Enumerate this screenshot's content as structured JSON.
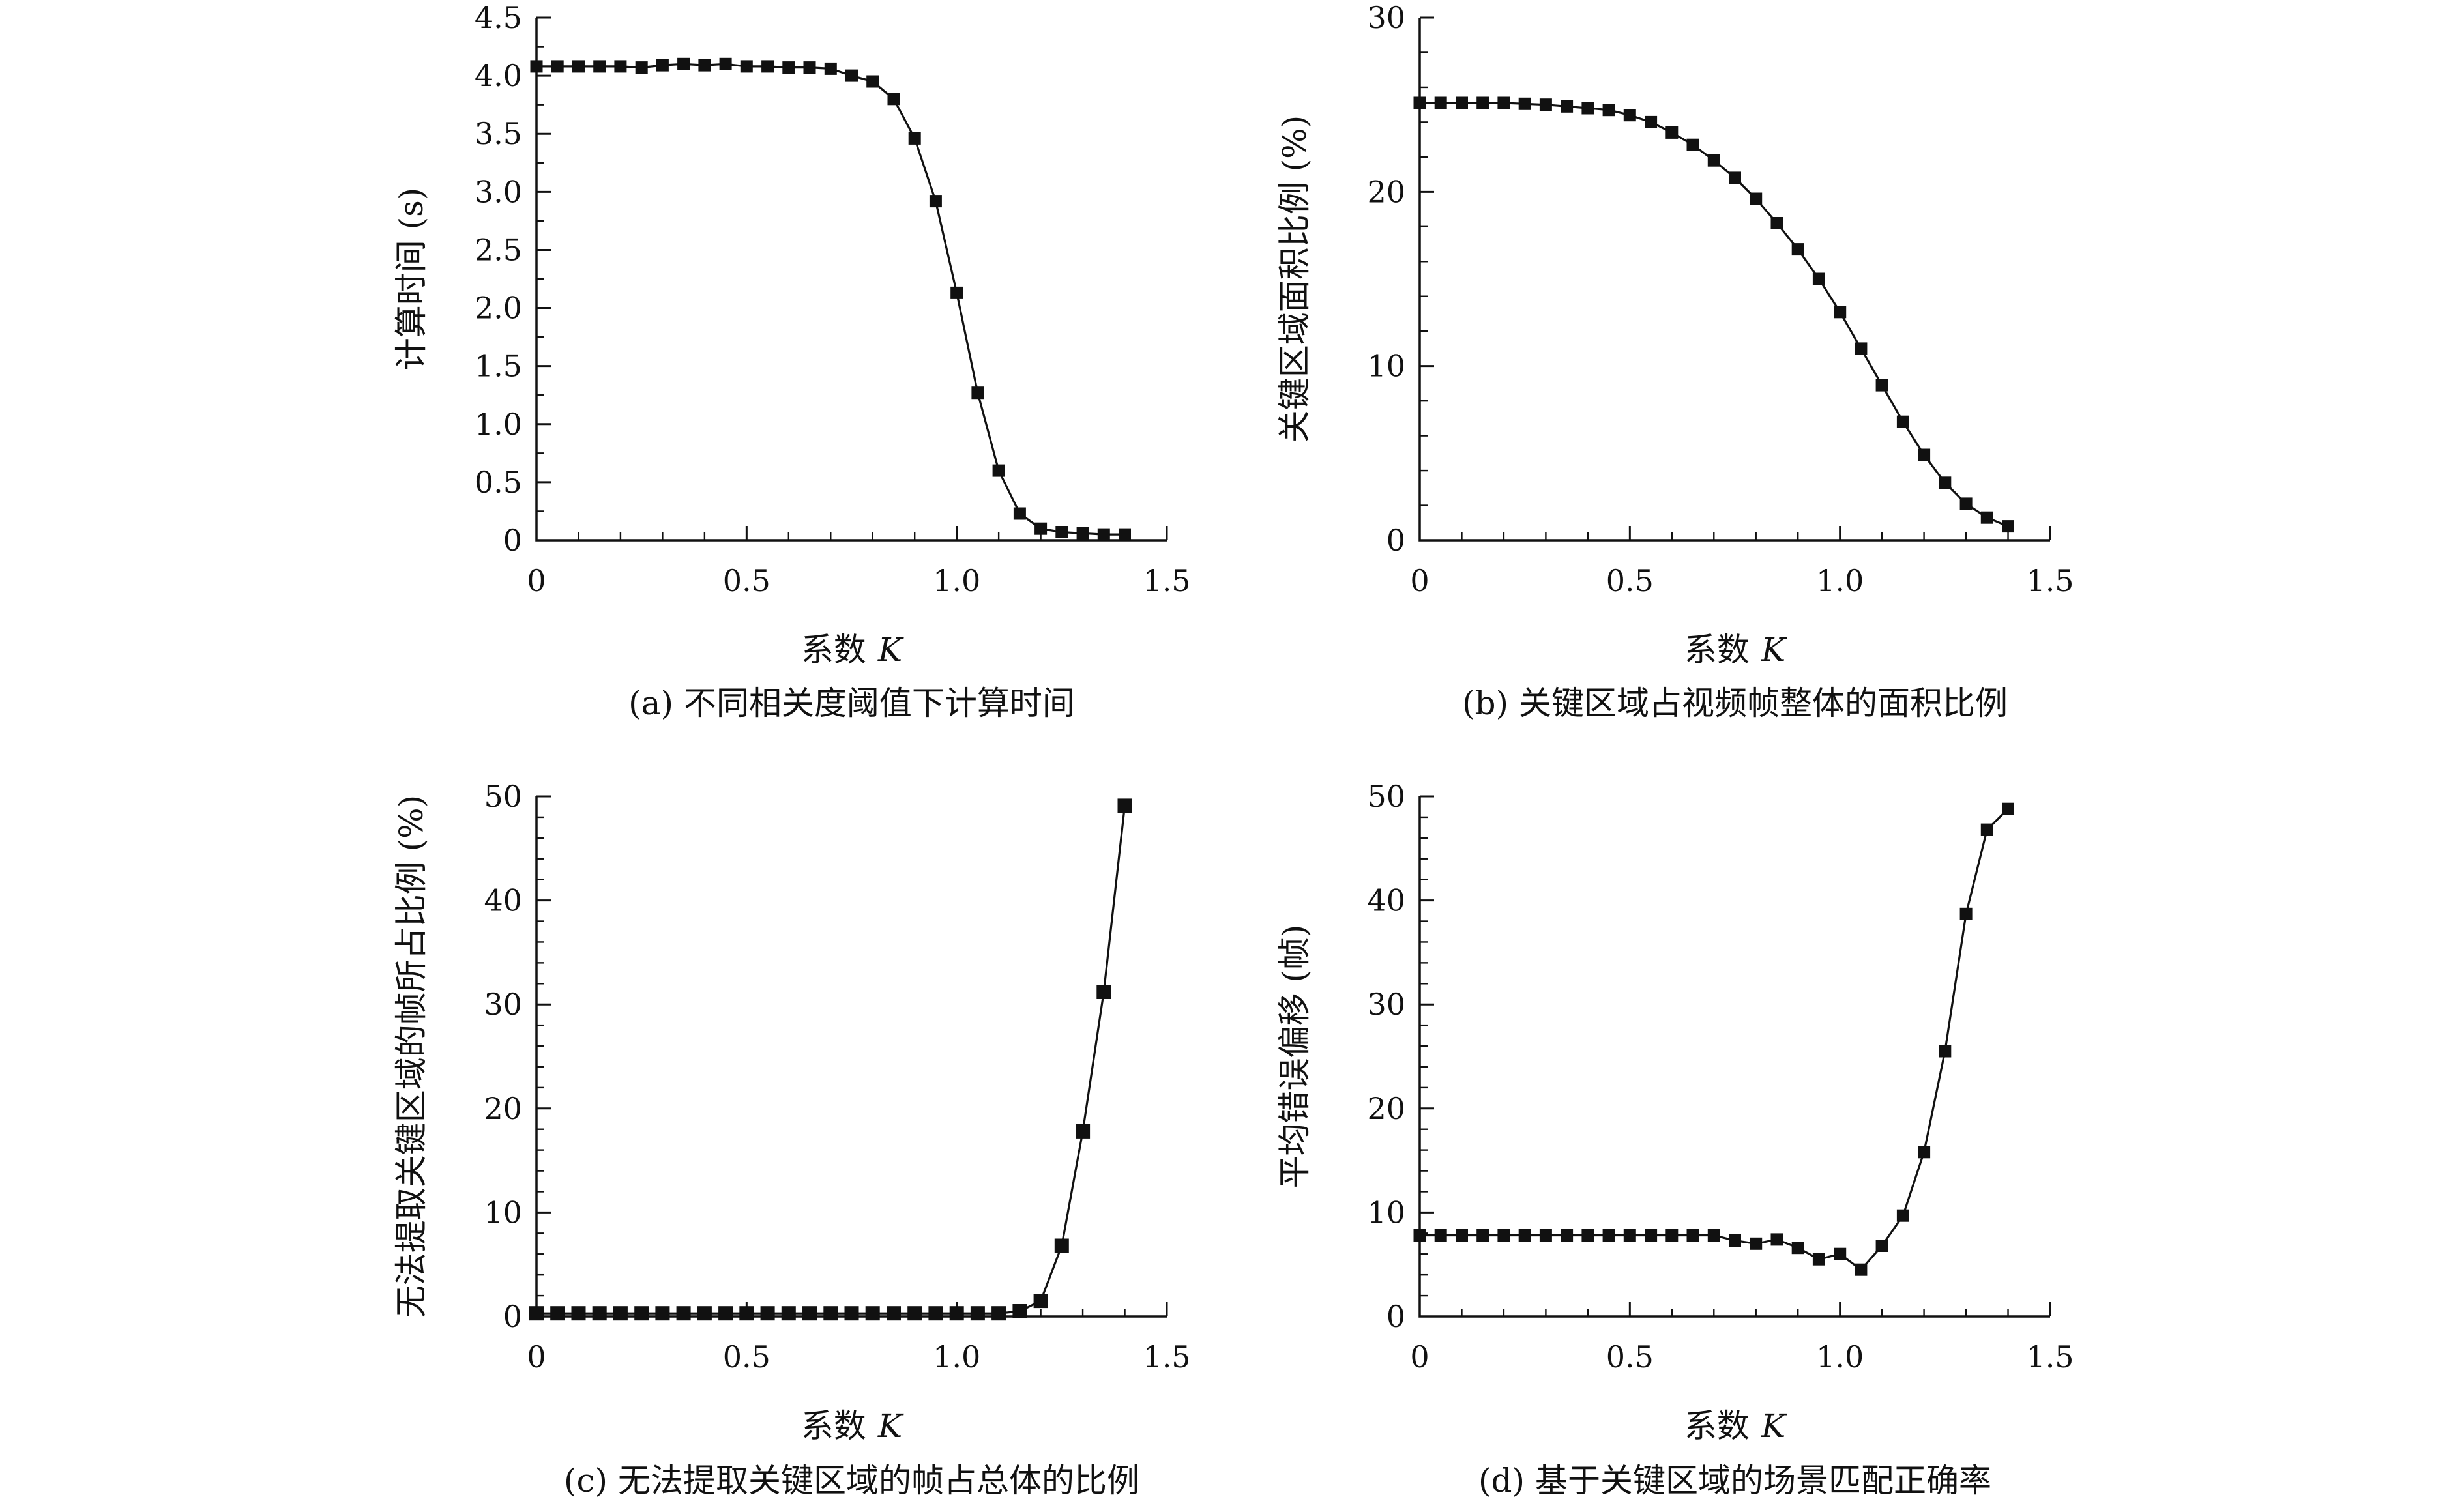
{
  "chart_data": [
    {
      "type": "line",
      "title": "",
      "caption": "(a) 不同相关度阈值下计算时间",
      "xlabel": "系数",
      "xlabel_var": "K",
      "ylabel": "计算时间 (s)",
      "xlim": [
        0,
        1.5
      ],
      "ylim": [
        0,
        4.5
      ],
      "xticks": [
        "0",
        "0.5",
        "1.0",
        "1.5"
      ],
      "yticks": [
        "0",
        "0.5",
        "1.0",
        "1.5",
        "2.0",
        "2.5",
        "3.0",
        "3.5",
        "4.0",
        "4.5"
      ],
      "grid": false,
      "x": [
        0,
        0.05,
        0.1,
        0.15,
        0.2,
        0.25,
        0.3,
        0.35,
        0.4,
        0.45,
        0.5,
        0.55,
        0.6,
        0.65,
        0.7,
        0.75,
        0.8,
        0.85,
        0.9,
        0.95,
        1.0,
        1.05,
        1.1,
        1.15,
        1.2,
        1.25,
        1.3,
        1.35,
        1.4
      ],
      "series": [
        {
          "values": [
            4.08,
            4.08,
            4.08,
            4.08,
            4.08,
            4.07,
            4.09,
            4.1,
            4.09,
            4.1,
            4.08,
            4.08,
            4.07,
            4.07,
            4.06,
            4.0,
            3.95,
            3.8,
            3.46,
            2.92,
            2.13,
            1.27,
            0.6,
            0.23,
            0.1,
            0.07,
            0.06,
            0.05,
            0.05
          ]
        }
      ]
    },
    {
      "type": "line",
      "title": "",
      "caption": "(b) 关键区域占视频帧整体的面积比例",
      "xlabel": "系数",
      "xlabel_var": "K",
      "ylabel": "关键区域面积比例 (%)",
      "xlim": [
        0,
        1.5
      ],
      "ylim": [
        0,
        30
      ],
      "xticks": [
        "0",
        "0.5",
        "1.0",
        "1.5"
      ],
      "yticks": [
        "0",
        "10",
        "20",
        "30"
      ],
      "grid": false,
      "x": [
        0,
        0.05,
        0.1,
        0.15,
        0.2,
        0.25,
        0.3,
        0.35,
        0.4,
        0.45,
        0.5,
        0.55,
        0.6,
        0.65,
        0.7,
        0.75,
        0.8,
        0.85,
        0.9,
        0.95,
        1.0,
        1.05,
        1.1,
        1.15,
        1.2,
        1.25,
        1.3,
        1.35,
        1.4
      ],
      "series": [
        {
          "values": [
            25.1,
            25.1,
            25.1,
            25.1,
            25.1,
            25.05,
            25.0,
            24.9,
            24.8,
            24.7,
            24.4,
            24.0,
            23.4,
            22.7,
            21.8,
            20.8,
            19.6,
            18.2,
            16.7,
            15.0,
            13.1,
            11.0,
            8.9,
            6.8,
            4.9,
            3.3,
            2.1,
            1.3,
            0.8
          ]
        }
      ]
    },
    {
      "type": "line",
      "title": "",
      "caption": "(c) 无法提取关键区域的帧占总体的比例",
      "xlabel": "系数",
      "xlabel_var": "K",
      "ylabel": "无法提取关键区域的帧所占比例 (%)",
      "xlim": [
        0,
        1.5
      ],
      "ylim": [
        0,
        50
      ],
      "xticks": [
        "0",
        "0.5",
        "1.0",
        "1.5"
      ],
      "yticks": [
        "0",
        "10",
        "20",
        "30",
        "40",
        "50"
      ],
      "grid": false,
      "x": [
        0,
        0.05,
        0.1,
        0.15,
        0.2,
        0.25,
        0.3,
        0.35,
        0.4,
        0.45,
        0.5,
        0.55,
        0.6,
        0.65,
        0.7,
        0.75,
        0.8,
        0.85,
        0.9,
        0.95,
        1.0,
        1.05,
        1.1,
        1.15,
        1.2,
        1.25,
        1.3,
        1.35,
        1.4
      ],
      "series": [
        {
          "values": [
            0.3,
            0.3,
            0.3,
            0.3,
            0.3,
            0.3,
            0.3,
            0.3,
            0.3,
            0.3,
            0.3,
            0.3,
            0.3,
            0.3,
            0.3,
            0.3,
            0.3,
            0.3,
            0.3,
            0.3,
            0.3,
            0.3,
            0.3,
            0.5,
            1.5,
            6.8,
            17.8,
            31.2,
            49.1
          ]
        }
      ]
    },
    {
      "type": "line",
      "title": "",
      "caption": "(d) 基于关键区域的场景匹配正确率",
      "xlabel": "系数",
      "xlabel_var": "K",
      "ylabel": "平均错误偏移 (帧)",
      "xlim": [
        0,
        1.5
      ],
      "ylim": [
        0,
        50
      ],
      "xticks": [
        "0",
        "0.5",
        "1.0",
        "1.5"
      ],
      "yticks": [
        "0",
        "10",
        "20",
        "30",
        "40",
        "50"
      ],
      "grid": false,
      "x": [
        0,
        0.05,
        0.1,
        0.15,
        0.2,
        0.25,
        0.3,
        0.35,
        0.4,
        0.45,
        0.5,
        0.55,
        0.6,
        0.65,
        0.7,
        0.75,
        0.8,
        0.85,
        0.9,
        0.95,
        1.0,
        1.05,
        1.1,
        1.15,
        1.2,
        1.25,
        1.3,
        1.35,
        1.4
      ],
      "series": [
        {
          "values": [
            7.8,
            7.8,
            7.8,
            7.8,
            7.8,
            7.8,
            7.8,
            7.8,
            7.8,
            7.8,
            7.8,
            7.8,
            7.8,
            7.8,
            7.8,
            7.3,
            7.0,
            7.4,
            6.6,
            5.5,
            6.0,
            4.5,
            6.8,
            9.7,
            15.8,
            25.5,
            38.7,
            46.8,
            48.8
          ]
        }
      ]
    }
  ]
}
